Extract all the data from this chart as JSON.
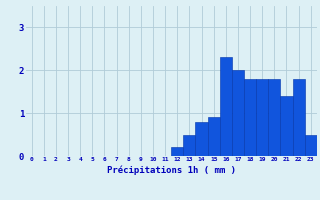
{
  "hours": [
    0,
    1,
    2,
    3,
    4,
    5,
    6,
    7,
    8,
    9,
    10,
    11,
    12,
    13,
    14,
    15,
    16,
    17,
    18,
    19,
    20,
    21,
    22,
    23
  ],
  "values": [
    0,
    0,
    0,
    0,
    0,
    0,
    0,
    0,
    0,
    0,
    0,
    0,
    0.2,
    0.5,
    0.8,
    0.9,
    2.3,
    2.0,
    1.8,
    1.8,
    1.8,
    1.4,
    1.8,
    0.5
  ],
  "bar_color": "#1155dd",
  "bar_edge_color": "#0033aa",
  "background_color": "#ddf0f5",
  "grid_color": "#b0ccd8",
  "xlabel": "Précipitations 1h ( mm )",
  "xlabel_color": "#0000bb",
  "tick_color": "#0000bb",
  "ylim": [
    0,
    3.5
  ],
  "yticks": [
    0,
    1,
    2,
    3
  ],
  "xlim": [
    -0.5,
    23.5
  ],
  "figsize": [
    3.2,
    2.0
  ],
  "dpi": 100
}
